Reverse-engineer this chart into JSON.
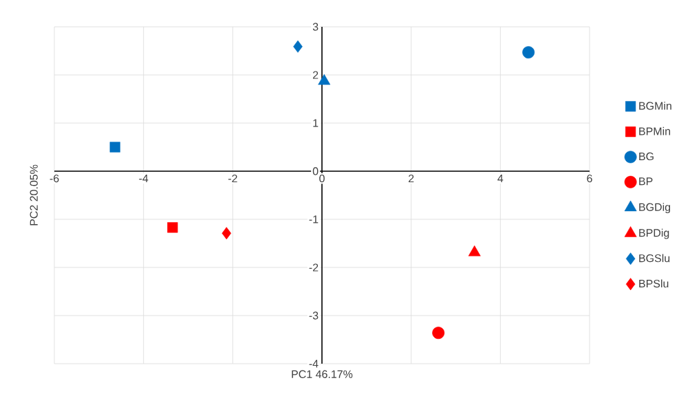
{
  "chart_data": {
    "type": "scatter",
    "xlabel": "PC1 46.17%",
    "ylabel": "PC2 20.05%",
    "xlim": [
      -6,
      6
    ],
    "ylim": [
      -4,
      3
    ],
    "xticks": [
      -6,
      -4,
      -2,
      0,
      2,
      4,
      6
    ],
    "yticks": [
      -4,
      -3,
      -2,
      -1,
      0,
      1,
      2,
      3
    ],
    "grid": true,
    "legend": "right",
    "series": [
      {
        "name": "BGMin",
        "color": "#0070c0",
        "marker": "square",
        "x": [
          -4.64
        ],
        "values": [
          0.5
        ]
      },
      {
        "name": "BPMin",
        "color": "#ff0000",
        "marker": "square",
        "x": [
          -3.35
        ],
        "values": [
          -1.17
        ]
      },
      {
        "name": "BG",
        "color": "#0070c0",
        "marker": "circle",
        "x": [
          4.63
        ],
        "values": [
          2.47
        ]
      },
      {
        "name": "BP",
        "color": "#ff0000",
        "marker": "circle",
        "x": [
          2.61
        ],
        "values": [
          -3.36
        ]
      },
      {
        "name": "BGDig",
        "color": "#0070c0",
        "marker": "triangle",
        "x": [
          0.05
        ],
        "values": [
          1.87
        ]
      },
      {
        "name": "BPDig",
        "color": "#ff0000",
        "marker": "triangle",
        "x": [
          3.42
        ],
        "values": [
          -1.69
        ]
      },
      {
        "name": "BGSlu",
        "color": "#0070c0",
        "marker": "diamond",
        "x": [
          -0.54
        ],
        "values": [
          2.59
        ]
      },
      {
        "name": "BPSlu",
        "color": "#ff0000",
        "marker": "diamond",
        "x": [
          -2.14
        ],
        "values": [
          -1.29
        ]
      }
    ]
  }
}
